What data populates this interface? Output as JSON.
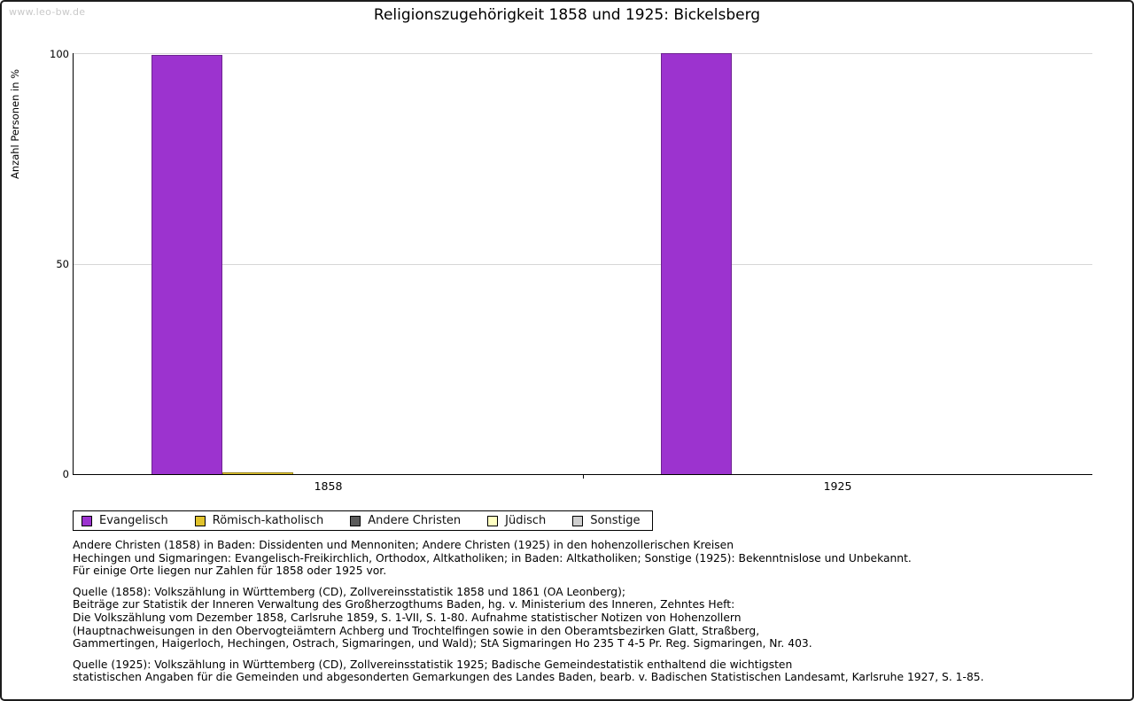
{
  "watermark": "www.leo-bw.de",
  "title": "Religionszugehörigkeit 1858 und 1925: Bickelsberg",
  "y_axis": {
    "label": "Anzahl Personen in %",
    "ticks": [
      0,
      50,
      100
    ]
  },
  "chart_data": {
    "type": "bar",
    "title": "Religionszugehörigkeit 1858 und 1925: Bickelsberg",
    "xlabel": "",
    "ylabel": "Anzahl Personen in %",
    "ylim": [
      0,
      100
    ],
    "grid": "horizontal",
    "legend_position": "bottom",
    "categories": [
      "1858",
      "1925"
    ],
    "series": [
      {
        "name": "Evangelisch",
        "color": "#9c33cf",
        "values": [
          99.5,
          100
        ]
      },
      {
        "name": "Römisch-katholisch",
        "color": "#e0c22c",
        "values": [
          0.5,
          0
        ]
      },
      {
        "name": "Andere Christen",
        "color": "#5a5a5a",
        "values": [
          0,
          0
        ]
      },
      {
        "name": "Jüdisch",
        "color": "#ffffc2",
        "values": [
          0,
          0
        ]
      },
      {
        "name": "Sonstige",
        "color": "#cfcfcf",
        "values": [
          0,
          0
        ]
      }
    ]
  },
  "footnotes": {
    "block1": [
      "Andere Christen (1858) in Baden: Dissidenten und Mennoniten; Andere Christen (1925) in den hohenzollerischen Kreisen",
      "Hechingen und Sigmaringen: Evangelisch-Freikirchlich, Orthodox, Altkatholiken; in Baden: Altkatholiken; Sonstige (1925): Bekenntnislose und Unbekannt.",
      "Für einige Orte liegen nur Zahlen für 1858 oder 1925 vor."
    ],
    "block2": [
      "Quelle (1858): Volkszählung in Württemberg (CD), Zollvereinsstatistik 1858 und 1861 (OA Leonberg);",
      "Beiträge zur Statistik der Inneren Verwaltung des Großherzogthums Baden, hg. v. Ministerium des Inneren, Zehntes Heft:",
      "Die Volkszählung vom Dezember 1858, Carlsruhe 1859, S. 1-VII, S. 1-80. Aufnahme statistischer Notizen von Hohenzollern",
      "(Hauptnachweisungen in den Obervogteiämtern Achberg und Trochtelfingen sowie in den Oberamtsbezirken Glatt, Straßberg,",
      "Gammertingen, Haigerloch, Hechingen, Ostrach, Sigmaringen, und Wald); StA Sigmaringen Ho 235 T 4-5 Pr. Reg. Sigmaringen, Nr. 403."
    ],
    "block3": [
      "Quelle (1925): Volkszählung in Württemberg (CD), Zollvereinsstatistik 1925; Badische Gemeindestatistik enthaltend die wichtigsten",
      "statistischen Angaben für die Gemeinden und abgesonderten Gemarkungen des Landes Baden, bearb. v. Badischen Statistischen Landesamt, Karlsruhe 1927, S. 1-85."
    ]
  }
}
